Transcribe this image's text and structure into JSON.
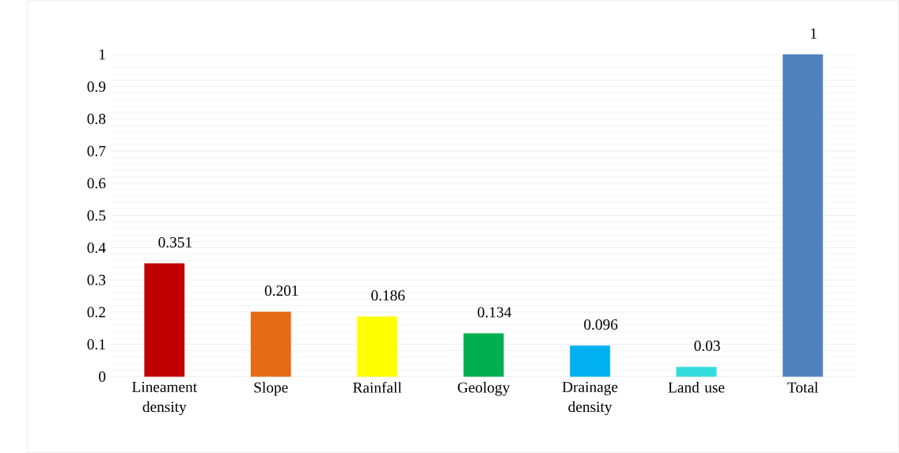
{
  "chart_data": {
    "type": "bar",
    "categories": [
      "Lineament density",
      "Slope",
      "Rainfall",
      "Geology",
      "Drainage density",
      "Land use",
      "Total"
    ],
    "values": [
      0.351,
      0.201,
      0.186,
      0.134,
      0.096,
      0.03,
      1
    ],
    "colors": [
      "#c00000",
      "#e46c14",
      "#ffff00",
      "#00b050",
      "#00b0f0",
      "#33dddd",
      "#4f81bd"
    ],
    "ylim": [
      0,
      1
    ],
    "yticks": [
      0,
      0.1,
      0.2,
      0.3,
      0.4,
      0.5,
      0.6,
      0.7,
      0.8,
      0.9,
      1
    ],
    "grid": true,
    "data_labels": true
  }
}
